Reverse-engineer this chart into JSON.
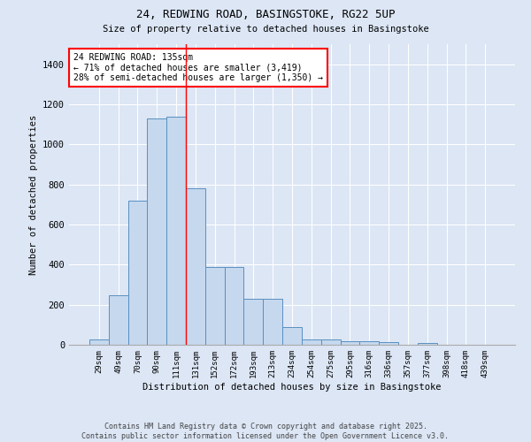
{
  "title_line1": "24, REDWING ROAD, BASINGSTOKE, RG22 5UP",
  "title_line2": "Size of property relative to detached houses in Basingstoke",
  "xlabel": "Distribution of detached houses by size in Basingstoke",
  "ylabel": "Number of detached properties",
  "categories": [
    "29sqm",
    "49sqm",
    "70sqm",
    "90sqm",
    "111sqm",
    "131sqm",
    "152sqm",
    "172sqm",
    "193sqm",
    "213sqm",
    "234sqm",
    "254sqm",
    "275sqm",
    "295sqm",
    "316sqm",
    "336sqm",
    "357sqm",
    "377sqm",
    "398sqm",
    "418sqm",
    "439sqm"
  ],
  "values": [
    25,
    248,
    720,
    1130,
    1140,
    780,
    390,
    390,
    228,
    228,
    90,
    28,
    25,
    18,
    18,
    14,
    0,
    10,
    0,
    0,
    0
  ],
  "bar_color": "#c5d8ee",
  "bar_edge_color": "#5a8fc0",
  "background_color": "#dce6f5",
  "grid_color": "#ffffff",
  "annotation_title": "24 REDWING ROAD: 135sqm",
  "annotation_line2": "← 71% of detached houses are smaller (3,419)",
  "annotation_line3": "28% of semi-detached houses are larger (1,350) →",
  "redline_bin": 5,
  "ylim": [
    0,
    1500
  ],
  "yticks": [
    0,
    200,
    400,
    600,
    800,
    1000,
    1200,
    1400
  ],
  "footer_line1": "Contains HM Land Registry data © Crown copyright and database right 2025.",
  "footer_line2": "Contains public sector information licensed under the Open Government Licence v3.0."
}
